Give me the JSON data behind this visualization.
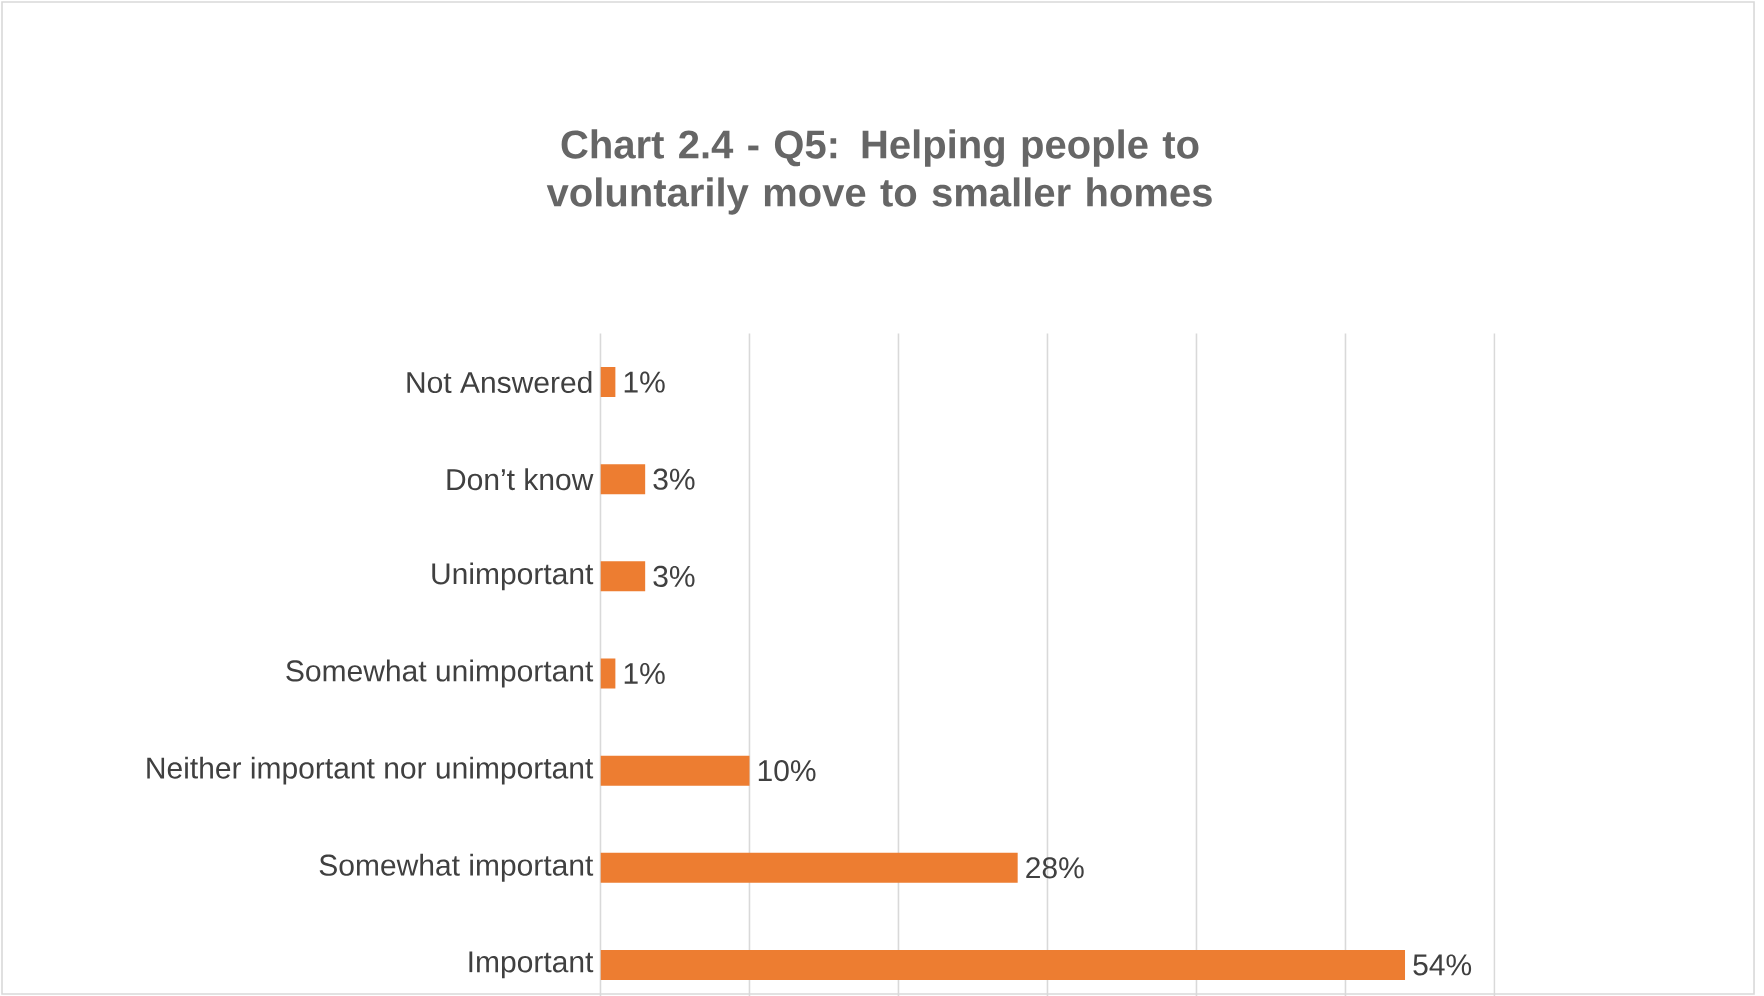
{
  "chart_data": {
    "type": "bar",
    "orientation": "horizontal",
    "title": "Chart 2.4 - Q5: Helping people to voluntarily move to smaller homes",
    "categories": [
      "Not Answered",
      "Don’t know",
      "Unimportant",
      "Somewhat unimportant",
      "Neither important nor unimportant",
      "Somewhat important",
      "Important"
    ],
    "values": [
      1,
      3,
      3,
      1,
      10,
      28,
      54
    ],
    "value_labels": [
      "1%",
      "3%",
      "3%",
      "1%",
      "10%",
      "28%",
      "54%"
    ],
    "color": "#ed7d31",
    "xlim": [
      0,
      60
    ],
    "xticks": [
      {
        "value": 0,
        "label": null
      },
      {
        "value": 10,
        "label": null
      },
      {
        "value": 20,
        "label": null
      },
      {
        "value": 30,
        "label": null
      },
      {
        "value": 40,
        "label": null
      },
      {
        "value": 50,
        "label": null
      },
      {
        "value": 60,
        "label": null
      }
    ],
    "grid": "x",
    "tick_labels": "y"
  }
}
